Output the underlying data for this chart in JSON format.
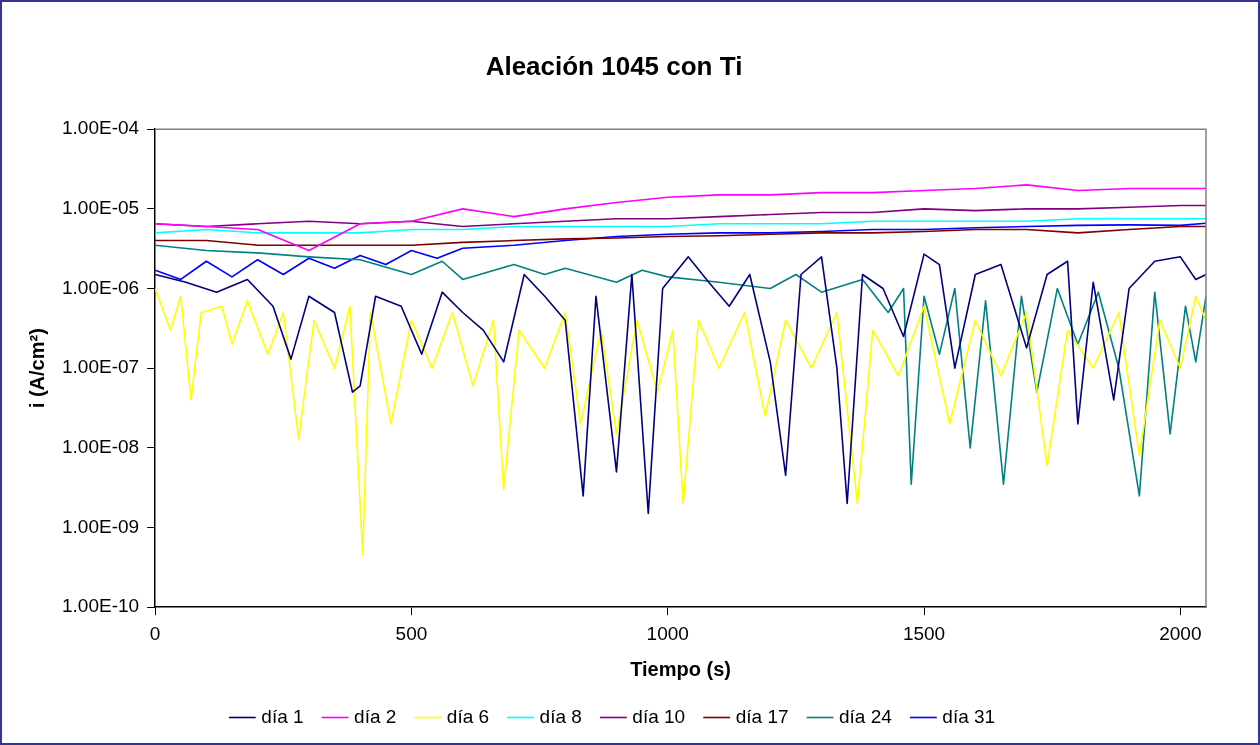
{
  "chart_data": {
    "type": "line",
    "title": "Aleación 1045 con Ti",
    "xlabel": "Tiempo (s)",
    "ylabel": "i (A/cm²)",
    "log": "y",
    "grid": false,
    "legend": "bottom",
    "marker": "none",
    "line_style": "solid",
    "xlim": [
      0,
      2050
    ],
    "xticks": [
      0,
      500,
      1000,
      1500,
      2000
    ],
    "ylim": [
      1e-10,
      0.0001
    ],
    "yticks": [
      {
        "value": 1e-10,
        "label": "1.00E-10"
      },
      {
        "value": 1e-09,
        "label": "1.00E-09"
      },
      {
        "value": 1e-08,
        "label": "1.00E-08"
      },
      {
        "value": 1e-07,
        "label": "1.00E-07"
      },
      {
        "value": 1e-06,
        "label": "1.00E-06"
      },
      {
        "value": 1e-05,
        "label": "1.00E-05"
      },
      {
        "value": 0.0001,
        "label": "1.00E-04"
      }
    ],
    "series": [
      {
        "name": "día 1",
        "color": "#000080",
        "x": [
          0,
          60,
          120,
          180,
          230,
          265,
          300,
          350,
          385,
          400,
          430,
          480,
          520,
          560,
          600,
          640,
          680,
          720,
          760,
          800,
          835,
          860,
          900,
          930,
          962,
          990,
          1040,
          1080,
          1120,
          1160,
          1200,
          1230,
          1260,
          1300,
          1330,
          1350,
          1380,
          1420,
          1460,
          1500,
          1530,
          1560,
          1600,
          1650,
          1700,
          1740,
          1780,
          1800,
          1830,
          1870,
          1900,
          1950,
          2000,
          2030,
          2050
        ],
        "values": [
          1.5e-06,
          1.2e-06,
          9e-07,
          1.3e-06,
          6e-07,
          1.3e-07,
          8e-07,
          5e-07,
          5e-08,
          6e-08,
          8e-07,
          6e-07,
          1.5e-07,
          9e-07,
          5e-07,
          3e-07,
          1.2e-07,
          1.5e-06,
          8e-07,
          4e-07,
          2.5e-09,
          8e-07,
          5e-09,
          1.5e-06,
          1.5e-09,
          1e-06,
          2.5e-06,
          1.2e-06,
          6e-07,
          1.5e-06,
          1.2e-07,
          4.5e-09,
          1.5e-06,
          2.5e-06,
          1e-07,
          2e-09,
          1.5e-06,
          1e-06,
          2.5e-07,
          2.7e-06,
          2e-06,
          1e-07,
          1.5e-06,
          2e-06,
          1.8e-07,
          1.5e-06,
          2.2e-06,
          2e-08,
          1.2e-06,
          4e-08,
          1e-06,
          2.2e-06,
          2.5e-06,
          1.3e-06,
          1.5e-06
        ]
      },
      {
        "name": "día 2",
        "color": "#ff00ff",
        "x": [
          0,
          100,
          200,
          300,
          400,
          500,
          600,
          700,
          800,
          900,
          1000,
          1100,
          1200,
          1300,
          1400,
          1500,
          1600,
          1700,
          1800,
          1900,
          2000,
          2050
        ],
        "values": [
          6.5e-06,
          6e-06,
          5.5e-06,
          3e-06,
          6.5e-06,
          7e-06,
          1e-05,
          8e-06,
          1e-05,
          1.2e-05,
          1.4e-05,
          1.5e-05,
          1.5e-05,
          1.6e-05,
          1.6e-05,
          1.7e-05,
          1.8e-05,
          2e-05,
          1.7e-05,
          1.8e-05,
          1.8e-05,
          1.8e-05
        ]
      },
      {
        "name": "día 6",
        "color": "#ffff00",
        "x": [
          0,
          30,
          50,
          70,
          90,
          130,
          150,
          180,
          220,
          250,
          280,
          310,
          350,
          380,
          405,
          420,
          460,
          500,
          540,
          580,
          620,
          660,
          680,
          710,
          760,
          800,
          830,
          870,
          900,
          940,
          980,
          1010,
          1030,
          1060,
          1100,
          1150,
          1190,
          1230,
          1280,
          1330,
          1370,
          1400,
          1450,
          1500,
          1550,
          1600,
          1650,
          1700,
          1740,
          1780,
          1830,
          1880,
          1920,
          1960,
          2000,
          2030,
          2050
        ],
        "values": [
          1e-06,
          3e-07,
          8e-07,
          4e-08,
          5e-07,
          6e-07,
          2e-07,
          7e-07,
          1.5e-07,
          5e-07,
          1.3e-08,
          4e-07,
          1e-07,
          6e-07,
          4.5e-10,
          5e-07,
          2e-08,
          4e-07,
          1e-07,
          5e-07,
          6e-08,
          4e-07,
          3e-09,
          3e-07,
          1e-07,
          5e-07,
          2e-08,
          3e-07,
          1.5e-08,
          4e-07,
          5e-08,
          3e-07,
          2e-09,
          4e-07,
          1e-07,
          5e-07,
          2.5e-08,
          4e-07,
          1e-07,
          5e-07,
          2e-09,
          3e-07,
          8e-08,
          6e-07,
          2e-08,
          4e-07,
          8e-08,
          5e-07,
          6e-09,
          3e-07,
          1e-07,
          5e-07,
          8e-09,
          4e-07,
          1e-07,
          8e-07,
          4e-07
        ]
      },
      {
        "name": "día 8",
        "color": "#00ffff",
        "x": [
          0,
          100,
          200,
          300,
          400,
          500,
          600,
          700,
          800,
          900,
          1000,
          1100,
          1200,
          1300,
          1400,
          1500,
          1600,
          1700,
          1800,
          1900,
          2000,
          2050
        ],
        "values": [
          5e-06,
          5.5e-06,
          5e-06,
          5e-06,
          5e-06,
          5.5e-06,
          5.5e-06,
          6e-06,
          6e-06,
          6e-06,
          6e-06,
          6.5e-06,
          6.5e-06,
          6.5e-06,
          7e-06,
          7e-06,
          7e-06,
          7e-06,
          7.5e-06,
          7.5e-06,
          7.5e-06,
          7.5e-06
        ]
      },
      {
        "name": "día 10",
        "color": "#800080",
        "x": [
          0,
          100,
          200,
          300,
          400,
          500,
          600,
          700,
          800,
          900,
          1000,
          1100,
          1200,
          1300,
          1400,
          1500,
          1600,
          1700,
          1800,
          1900,
          2000,
          2050
        ],
        "values": [
          6.5e-06,
          6e-06,
          6.5e-06,
          7e-06,
          6.5e-06,
          7e-06,
          6e-06,
          6.5e-06,
          7e-06,
          7.5e-06,
          7.5e-06,
          8e-06,
          8.5e-06,
          9e-06,
          9e-06,
          1e-05,
          9.5e-06,
          1e-05,
          1e-05,
          1.05e-05,
          1.1e-05,
          1.1e-05
        ]
      },
      {
        "name": "día 17",
        "color": "#800000",
        "x": [
          0,
          100,
          200,
          300,
          400,
          500,
          600,
          700,
          800,
          900,
          1000,
          1100,
          1200,
          1300,
          1400,
          1500,
          1600,
          1700,
          1800,
          1900,
          2000,
          2050
        ],
        "values": [
          4e-06,
          4e-06,
          3.5e-06,
          3.5e-06,
          3.5e-06,
          3.5e-06,
          3.8e-06,
          4e-06,
          4.2e-06,
          4.3e-06,
          4.5e-06,
          4.6e-06,
          4.8e-06,
          5e-06,
          5e-06,
          5.2e-06,
          5.5e-06,
          5.5e-06,
          5e-06,
          5.5e-06,
          6e-06,
          6e-06
        ]
      },
      {
        "name": "día 24",
        "color": "#008080",
        "x": [
          0,
          100,
          200,
          300,
          400,
          500,
          560,
          600,
          700,
          760,
          800,
          900,
          950,
          1000,
          1100,
          1200,
          1250,
          1300,
          1380,
          1430,
          1460,
          1475,
          1500,
          1530,
          1560,
          1590,
          1620,
          1655,
          1690,
          1720,
          1760,
          1800,
          1840,
          1880,
          1920,
          1950,
          1980,
          2010,
          2030,
          2050
        ],
        "values": [
          3.5e-06,
          3e-06,
          2.8e-06,
          2.5e-06,
          2.3e-06,
          1.5e-06,
          2.2e-06,
          1.3e-06,
          2e-06,
          1.5e-06,
          1.8e-06,
          1.2e-06,
          1.7e-06,
          1.4e-06,
          1.2e-06,
          1e-06,
          1.5e-06,
          9e-07,
          1.3e-06,
          5e-07,
          1e-06,
          3.5e-09,
          8e-07,
          1.5e-07,
          1e-06,
          1e-08,
          7e-07,
          3.5e-09,
          8e-07,
          5e-08,
          1e-06,
          2e-07,
          9e-07,
          1e-07,
          2.5e-09,
          9e-07,
          1.5e-08,
          6e-07,
          1.2e-07,
          8e-07
        ]
      },
      {
        "name": "día 31",
        "color": "#0000ff",
        "x": [
          0,
          50,
          100,
          150,
          200,
          250,
          300,
          350,
          400,
          450,
          500,
          550,
          600,
          700,
          800,
          900,
          1000,
          1100,
          1200,
          1300,
          1400,
          1500,
          1600,
          1700,
          1800,
          1900,
          2000,
          2050
        ],
        "values": [
          1.7e-06,
          1.3e-06,
          2.2e-06,
          1.4e-06,
          2.3e-06,
          1.5e-06,
          2.4e-06,
          1.8e-06,
          2.6e-06,
          2e-06,
          3e-06,
          2.4e-06,
          3.2e-06,
          3.5e-06,
          4e-06,
          4.5e-06,
          4.8e-06,
          5e-06,
          5e-06,
          5.2e-06,
          5.5e-06,
          5.5e-06,
          5.8e-06,
          6e-06,
          6.2e-06,
          6.3e-06,
          6.2e-06,
          6.6e-06
        ]
      }
    ]
  }
}
